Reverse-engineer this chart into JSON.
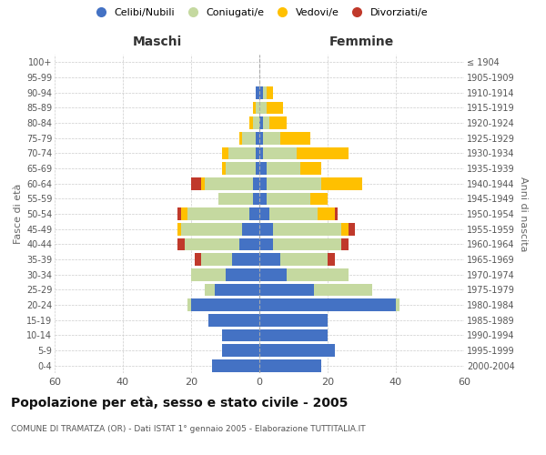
{
  "age_groups": [
    "0-4",
    "5-9",
    "10-14",
    "15-19",
    "20-24",
    "25-29",
    "30-34",
    "35-39",
    "40-44",
    "45-49",
    "50-54",
    "55-59",
    "60-64",
    "65-69",
    "70-74",
    "75-79",
    "80-84",
    "85-89",
    "90-94",
    "95-99",
    "100+"
  ],
  "birth_years": [
    "2000-2004",
    "1995-1999",
    "1990-1994",
    "1985-1989",
    "1980-1984",
    "1975-1979",
    "1970-1974",
    "1965-1969",
    "1960-1964",
    "1955-1959",
    "1950-1954",
    "1945-1949",
    "1940-1944",
    "1935-1939",
    "1930-1934",
    "1925-1929",
    "1920-1924",
    "1915-1919",
    "1910-1914",
    "1905-1909",
    "≤ 1904"
  ],
  "male": {
    "celibi": [
      14,
      11,
      11,
      15,
      20,
      13,
      10,
      8,
      6,
      5,
      3,
      2,
      2,
      1,
      1,
      1,
      0,
      0,
      1,
      0,
      0
    ],
    "coniugati": [
      0,
      0,
      0,
      0,
      1,
      3,
      10,
      9,
      16,
      18,
      18,
      10,
      14,
      9,
      8,
      4,
      2,
      1,
      0,
      0,
      0
    ],
    "vedovi": [
      0,
      0,
      0,
      0,
      0,
      0,
      0,
      0,
      0,
      1,
      2,
      0,
      1,
      1,
      2,
      1,
      1,
      1,
      0,
      0,
      0
    ],
    "divorziati": [
      0,
      0,
      0,
      0,
      0,
      0,
      0,
      2,
      2,
      0,
      1,
      0,
      3,
      0,
      0,
      0,
      0,
      0,
      0,
      0,
      0
    ]
  },
  "female": {
    "nubili": [
      18,
      22,
      20,
      20,
      40,
      16,
      8,
      6,
      4,
      4,
      3,
      2,
      2,
      2,
      1,
      1,
      1,
      0,
      1,
      0,
      0
    ],
    "coniugate": [
      0,
      0,
      0,
      0,
      1,
      17,
      18,
      14,
      20,
      20,
      14,
      13,
      16,
      10,
      10,
      5,
      2,
      2,
      1,
      0,
      0
    ],
    "vedove": [
      0,
      0,
      0,
      0,
      0,
      0,
      0,
      0,
      0,
      2,
      5,
      5,
      12,
      6,
      15,
      9,
      5,
      5,
      2,
      0,
      0
    ],
    "divorziate": [
      0,
      0,
      0,
      0,
      0,
      0,
      0,
      2,
      2,
      2,
      1,
      0,
      0,
      0,
      0,
      0,
      0,
      0,
      0,
      0,
      0
    ]
  },
  "colors": {
    "celibi": "#4472c4",
    "coniugati": "#c5d9a0",
    "vedovi": "#ffc000",
    "divorziati": "#c0392b"
  },
  "xlim": 60,
  "title": "Popolazione per età, sesso e stato civile - 2005",
  "subtitle": "COMUNE DI TRAMATZA (OR) - Dati ISTAT 1° gennaio 2005 - Elaborazione TUTTITALIA.IT",
  "xlabel_left": "Maschi",
  "xlabel_right": "Femmine",
  "ylabel_left": "Fasce di età",
  "ylabel_right": "Anni di nascita",
  "background_color": "#ffffff",
  "grid_color": "#cccccc",
  "legend_labels": [
    "Celibi/Nubili",
    "Coniugati/e",
    "Vedovi/e",
    "Divorziati/e"
  ]
}
